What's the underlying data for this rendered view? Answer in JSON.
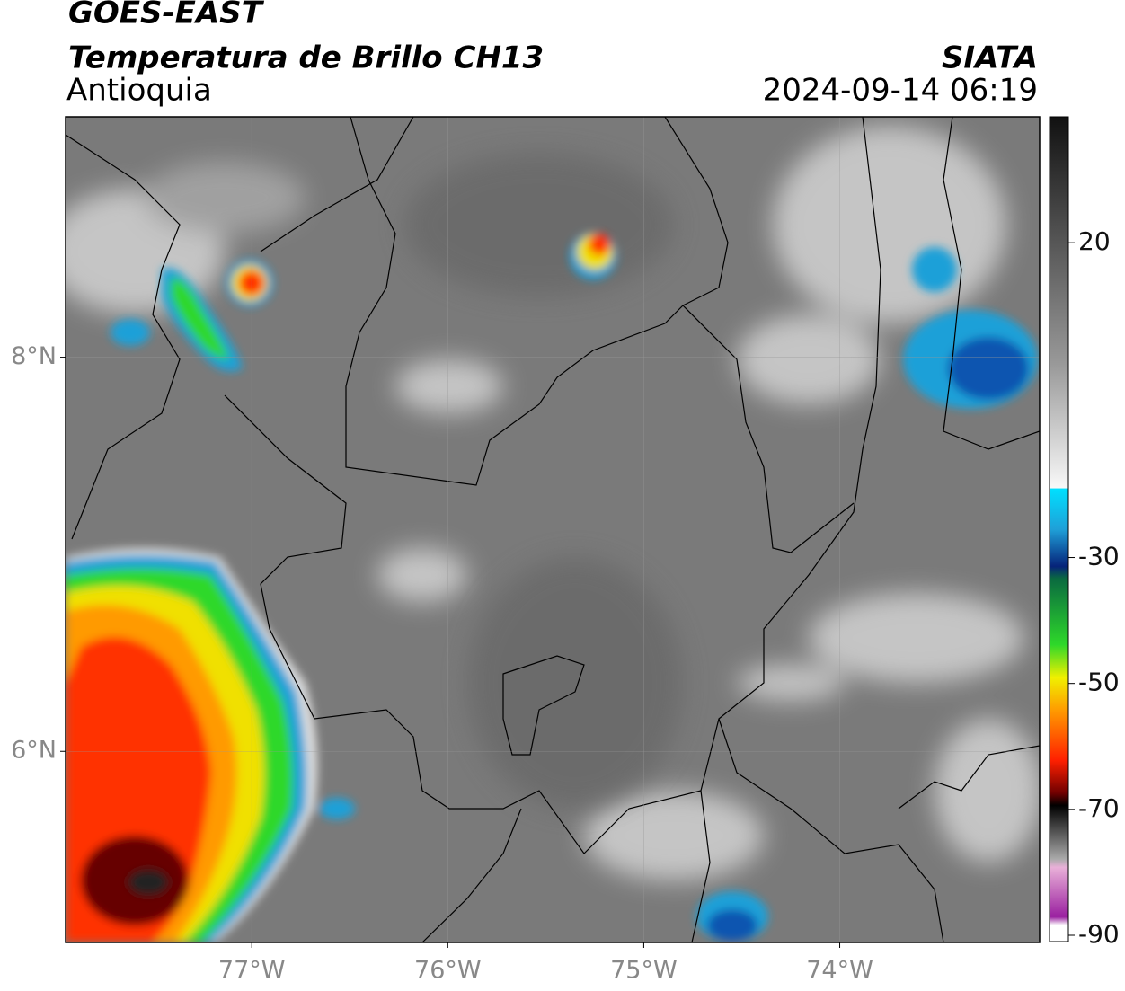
{
  "header": {
    "satellite": "GOES-EAST",
    "product": "Temperatura de Brillo CH13",
    "region": "Antioquia",
    "source": "SIATA",
    "datetime": "2024-09-14 06:19"
  },
  "map": {
    "xlim": [
      -77.95,
      -72.98
    ],
    "ylim": [
      5.03,
      9.22
    ],
    "xticks": [
      {
        "value": -77,
        "label": "77°W"
      },
      {
        "value": -76,
        "label": "76°W"
      },
      {
        "value": -75,
        "label": "75°W"
      },
      {
        "value": -74,
        "label": "74°W"
      }
    ],
    "yticks": [
      {
        "value": 8,
        "label": "8°N"
      },
      {
        "value": 6,
        "label": "6°N"
      }
    ]
  },
  "colorbar": {
    "lim": [
      -91,
      40
    ],
    "ticks": [
      20,
      -30,
      -50,
      -70,
      -90
    ]
  }
}
